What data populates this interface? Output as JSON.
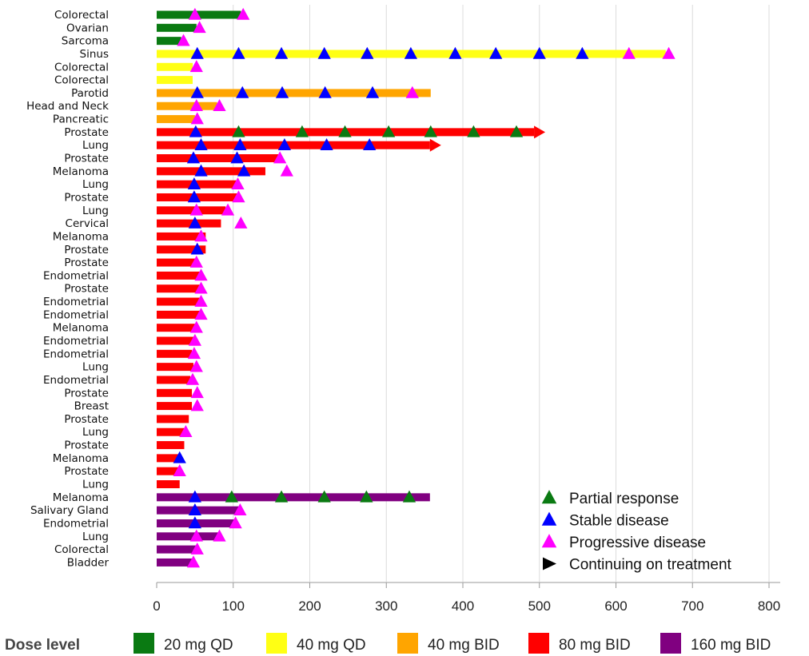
{
  "chart_data": {
    "type": "bar",
    "orientation": "horizontal",
    "title": "",
    "xlabel": "",
    "ylabel": "",
    "xlim": [
      0,
      800
    ],
    "xticks": [
      0,
      100,
      200,
      300,
      400,
      500,
      600,
      700,
      800
    ],
    "grid": "vertical",
    "dose_levels": [
      {
        "key": "20qd",
        "label": "20 mg QD",
        "color": "#0a7a12"
      },
      {
        "key": "40qd",
        "label": "40 mg QD",
        "color": "#ffff14"
      },
      {
        "key": "40bid",
        "label": "40 mg BID",
        "color": "#ffa500"
      },
      {
        "key": "80bid",
        "label": "80 mg BID",
        "color": "#ff0000"
      },
      {
        "key": "160bid",
        "label": "160 mg BID",
        "color": "#800080"
      }
    ],
    "dose_legend_title": "Dose level",
    "marker_legend": [
      {
        "key": "PR",
        "label": "Partial response",
        "color": "#0a7a12",
        "shape": "triangle-up"
      },
      {
        "key": "SD",
        "label": "Stable disease",
        "color": "#0000ff",
        "shape": "triangle-up"
      },
      {
        "key": "PD",
        "label": "Progressive disease",
        "color": "#ff00ff",
        "shape": "triangle-up"
      },
      {
        "key": "CT",
        "label": "Continuing on treatment",
        "color": "#000000",
        "shape": "triangle-right"
      }
    ],
    "patients": [
      {
        "label": "Colorectal",
        "dose": "20qd",
        "duration": 110,
        "continuing": false,
        "markers": [
          {
            "t": 50,
            "type": "PD"
          },
          {
            "t": 113,
            "type": "PD"
          }
        ]
      },
      {
        "label": "Ovarian",
        "dose": "20qd",
        "duration": 52,
        "continuing": false,
        "markers": [
          {
            "t": 56,
            "type": "PD"
          }
        ]
      },
      {
        "label": "Sarcoma",
        "dose": "20qd",
        "duration": 32,
        "continuing": false,
        "markers": [
          {
            "t": 35,
            "type": "PD"
          }
        ]
      },
      {
        "label": "Sinus",
        "dose": "40qd",
        "duration": 665,
        "continuing": false,
        "markers": [
          {
            "t": 53,
            "type": "SD"
          },
          {
            "t": 107,
            "type": "SD"
          },
          {
            "t": 163,
            "type": "SD"
          },
          {
            "t": 219,
            "type": "SD"
          },
          {
            "t": 275,
            "type": "SD"
          },
          {
            "t": 332,
            "type": "SD"
          },
          {
            "t": 390,
            "type": "SD"
          },
          {
            "t": 443,
            "type": "SD"
          },
          {
            "t": 500,
            "type": "SD"
          },
          {
            "t": 556,
            "type": "SD"
          },
          {
            "t": 617,
            "type": "PD"
          },
          {
            "t": 669,
            "type": "PD"
          }
        ]
      },
      {
        "label": "Colorectal",
        "dose": "40qd",
        "duration": 47,
        "continuing": false,
        "markers": [
          {
            "t": 52,
            "type": "PD"
          }
        ]
      },
      {
        "label": "Colorectal",
        "dose": "40qd",
        "duration": 47,
        "continuing": false,
        "markers": []
      },
      {
        "label": "Parotid",
        "dose": "40bid",
        "duration": 358,
        "continuing": false,
        "markers": [
          {
            "t": 53,
            "type": "SD"
          },
          {
            "t": 112,
            "type": "SD"
          },
          {
            "t": 164,
            "type": "SD"
          },
          {
            "t": 220,
            "type": "SD"
          },
          {
            "t": 282,
            "type": "SD"
          },
          {
            "t": 334,
            "type": "PD"
          }
        ]
      },
      {
        "label": "Head and Neck",
        "dose": "40bid",
        "duration": 79,
        "continuing": false,
        "markers": [
          {
            "t": 52,
            "type": "PD"
          },
          {
            "t": 82,
            "type": "PD"
          }
        ]
      },
      {
        "label": "Pancreatic",
        "dose": "40bid",
        "duration": 50,
        "continuing": false,
        "markers": [
          {
            "t": 53,
            "type": "PD"
          }
        ]
      },
      {
        "label": "Prostate",
        "dose": "80bid",
        "duration": 493,
        "continuing": true,
        "markers": [
          {
            "t": 51,
            "type": "SD"
          },
          {
            "t": 107,
            "type": "PR"
          },
          {
            "t": 190,
            "type": "PR"
          },
          {
            "t": 246,
            "type": "PR"
          },
          {
            "t": 303,
            "type": "PR"
          },
          {
            "t": 358,
            "type": "PR"
          },
          {
            "t": 414,
            "type": "PR"
          },
          {
            "t": 470,
            "type": "PR"
          }
        ]
      },
      {
        "label": "Lung",
        "dose": "80bid",
        "duration": 357,
        "continuing": true,
        "markers": [
          {
            "t": 58,
            "type": "SD"
          },
          {
            "t": 109,
            "type": "SD"
          },
          {
            "t": 167,
            "type": "SD"
          },
          {
            "t": 222,
            "type": "SD"
          },
          {
            "t": 278,
            "type": "SD"
          }
        ]
      },
      {
        "label": "Prostate",
        "dose": "80bid",
        "duration": 160,
        "continuing": false,
        "markers": [
          {
            "t": 48,
            "type": "SD"
          },
          {
            "t": 105,
            "type": "SD"
          },
          {
            "t": 161,
            "type": "PD"
          }
        ]
      },
      {
        "label": "Melanoma",
        "dose": "80bid",
        "duration": 142,
        "continuing": false,
        "markers": [
          {
            "t": 58,
            "type": "SD"
          },
          {
            "t": 114,
            "type": "SD"
          },
          {
            "t": 170,
            "type": "PD"
          }
        ]
      },
      {
        "label": "Lung",
        "dose": "80bid",
        "duration": 106,
        "continuing": false,
        "markers": [
          {
            "t": 49,
            "type": "SD"
          },
          {
            "t": 106,
            "type": "PD"
          }
        ]
      },
      {
        "label": "Prostate",
        "dose": "80bid",
        "duration": 106,
        "continuing": false,
        "markers": [
          {
            "t": 49,
            "type": "SD"
          },
          {
            "t": 107,
            "type": "PD"
          }
        ]
      },
      {
        "label": "Lung",
        "dose": "80bid",
        "duration": 90,
        "continuing": false,
        "markers": [
          {
            "t": 52,
            "type": "PD"
          },
          {
            "t": 93,
            "type": "PD"
          }
        ]
      },
      {
        "label": "Cervical",
        "dose": "80bid",
        "duration": 84,
        "continuing": false,
        "markers": [
          {
            "t": 50,
            "type": "SD"
          },
          {
            "t": 110,
            "type": "PD"
          }
        ]
      },
      {
        "label": "Melanoma",
        "dose": "80bid",
        "duration": 64,
        "continuing": false,
        "markers": [
          {
            "t": 58,
            "type": "PD"
          }
        ]
      },
      {
        "label": "Prostate",
        "dose": "80bid",
        "duration": 64,
        "continuing": false,
        "markers": [
          {
            "t": 53,
            "type": "SD"
          }
        ]
      },
      {
        "label": "Prostate",
        "dose": "80bid",
        "duration": 52,
        "continuing": false,
        "markers": [
          {
            "t": 52,
            "type": "PD"
          }
        ]
      },
      {
        "label": "Endometrial",
        "dose": "80bid",
        "duration": 56,
        "continuing": false,
        "markers": [
          {
            "t": 58,
            "type": "PD"
          }
        ]
      },
      {
        "label": "Prostate",
        "dose": "80bid",
        "duration": 56,
        "continuing": false,
        "markers": [
          {
            "t": 58,
            "type": "PD"
          }
        ]
      },
      {
        "label": "Endometrial",
        "dose": "80bid",
        "duration": 56,
        "continuing": false,
        "markers": [
          {
            "t": 58,
            "type": "PD"
          }
        ]
      },
      {
        "label": "Endometrial",
        "dose": "80bid",
        "duration": 56,
        "continuing": false,
        "markers": [
          {
            "t": 58,
            "type": "PD"
          }
        ]
      },
      {
        "label": "Melanoma",
        "dose": "80bid",
        "duration": 50,
        "continuing": false,
        "markers": [
          {
            "t": 52,
            "type": "PD"
          }
        ]
      },
      {
        "label": "Endometrial",
        "dose": "80bid",
        "duration": 48,
        "continuing": false,
        "markers": [
          {
            "t": 50,
            "type": "PD"
          }
        ]
      },
      {
        "label": "Endometrial",
        "dose": "80bid",
        "duration": 46,
        "continuing": false,
        "markers": [
          {
            "t": 49,
            "type": "PD"
          }
        ]
      },
      {
        "label": "Lung",
        "dose": "80bid",
        "duration": 48,
        "continuing": false,
        "markers": [
          {
            "t": 52,
            "type": "PD"
          }
        ]
      },
      {
        "label": "Endometrial",
        "dose": "80bid",
        "duration": 44,
        "continuing": false,
        "markers": [
          {
            "t": 47,
            "type": "PD"
          }
        ]
      },
      {
        "label": "Prostate",
        "dose": "80bid",
        "duration": 46,
        "continuing": false,
        "markers": [
          {
            "t": 53,
            "type": "PD"
          }
        ]
      },
      {
        "label": "Breast",
        "dose": "80bid",
        "duration": 46,
        "continuing": false,
        "markers": [
          {
            "t": 53,
            "type": "PD"
          }
        ]
      },
      {
        "label": "Prostate",
        "dose": "80bid",
        "duration": 42,
        "continuing": false,
        "markers": []
      },
      {
        "label": "Lung",
        "dose": "80bid",
        "duration": 36,
        "continuing": false,
        "markers": [
          {
            "t": 38,
            "type": "PD"
          }
        ]
      },
      {
        "label": "Prostate",
        "dose": "80bid",
        "duration": 36,
        "continuing": false,
        "markers": []
      },
      {
        "label": "Melanoma",
        "dose": "80bid",
        "duration": 28,
        "continuing": false,
        "markers": [
          {
            "t": 30,
            "type": "SD"
          }
        ]
      },
      {
        "label": "Prostate",
        "dose": "80bid",
        "duration": 28,
        "continuing": false,
        "markers": [
          {
            "t": 30,
            "type": "PD"
          }
        ]
      },
      {
        "label": "Lung",
        "dose": "80bid",
        "duration": 30,
        "continuing": false,
        "markers": []
      },
      {
        "label": "Melanoma",
        "dose": "160bid",
        "duration": 357,
        "continuing": false,
        "markers": [
          {
            "t": 50,
            "type": "SD"
          },
          {
            "t": 98,
            "type": "PR"
          },
          {
            "t": 163,
            "type": "PR"
          },
          {
            "t": 219,
            "type": "PR"
          },
          {
            "t": 274,
            "type": "PR"
          },
          {
            "t": 330,
            "type": "PR"
          }
        ]
      },
      {
        "label": "Salivary Gland",
        "dose": "160bid",
        "duration": 108,
        "continuing": false,
        "markers": [
          {
            "t": 50,
            "type": "SD"
          },
          {
            "t": 109,
            "type": "PD"
          }
        ]
      },
      {
        "label": "Endometrial",
        "dose": "160bid",
        "duration": 104,
        "continuing": false,
        "markers": [
          {
            "t": 50,
            "type": "SD"
          },
          {
            "t": 103,
            "type": "PD"
          }
        ]
      },
      {
        "label": "Lung",
        "dose": "160bid",
        "duration": 80,
        "continuing": false,
        "markers": [
          {
            "t": 52,
            "type": "PD"
          },
          {
            "t": 82,
            "type": "PD"
          }
        ]
      },
      {
        "label": "Colorectal",
        "dose": "160bid",
        "duration": 52,
        "continuing": false,
        "markers": [
          {
            "t": 53,
            "type": "PD"
          }
        ]
      },
      {
        "label": "Bladder",
        "dose": "160bid",
        "duration": 46,
        "continuing": false,
        "markers": [
          {
            "t": 48,
            "type": "PD"
          }
        ]
      }
    ]
  }
}
